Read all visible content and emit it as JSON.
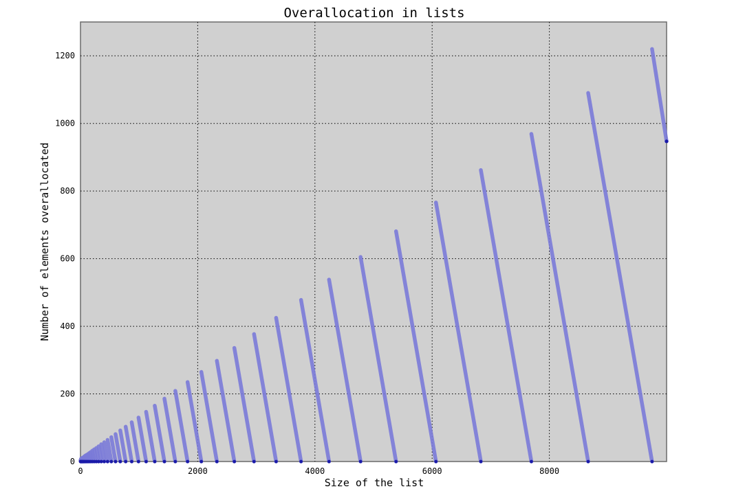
{
  "chart_data": {
    "type": "line",
    "title": "Overallocation in lists",
    "xlabel": "Size of the list",
    "ylabel": "Number of elements overallocated",
    "xlim": [
      0,
      10000
    ],
    "ylim": [
      0,
      1300
    ],
    "xticks": [
      0,
      2000,
      4000,
      6000,
      8000
    ],
    "yticks": [
      0,
      200,
      400,
      600,
      800,
      1000,
      1200
    ],
    "grid": true,
    "colors": {
      "line": "#7a7ad8",
      "marker": "#1a1aa8",
      "background": "#d0d0d0",
      "frame": "#6a6a6a"
    },
    "reset_points": [
      0,
      4,
      8,
      16,
      25,
      35,
      46,
      58,
      72,
      88,
      106,
      126,
      148,
      173,
      201,
      233,
      269,
      309,
      354,
      405,
      462,
      526,
      598,
      679,
      771,
      874,
      990,
      1120,
      1267,
      1432,
      1618,
      1827,
      2062,
      2327,
      2625,
      2961,
      3338,
      3763,
      4241,
      4779,
      5384,
      6065,
      6831,
      7693,
      8662,
      9752
    ],
    "series": [
      {
        "x": [
          9752,
          10000
        ],
        "y": [
          1220,
          947
        ]
      }
    ]
  }
}
